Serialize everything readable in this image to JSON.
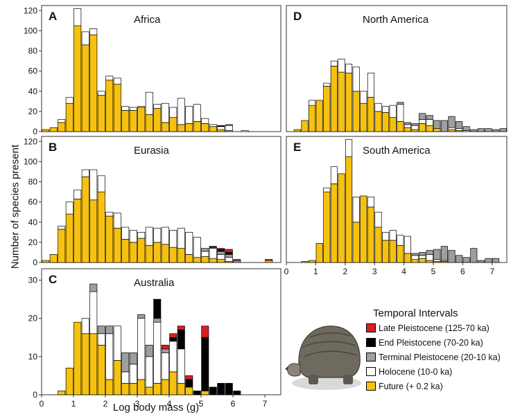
{
  "figure": {
    "y_axis_title": "Number of species present",
    "x_axis_title": "Log body mass (g)"
  },
  "legend": {
    "title": "Temporal Intervals",
    "items": [
      {
        "label": "Late Pleistocene (125-70 ka)",
        "color": "#d71f26"
      },
      {
        "label": "End Pleistocene (70-20 ka)",
        "color": "#000000"
      },
      {
        "label": "Terminal Pleistocene (20-10 ka)",
        "color": "#9e9e9e"
      },
      {
        "label": "Holocene (10-0 ka)",
        "color": "#ffffff"
      },
      {
        "label": "Future (+ 0.2 ka)",
        "color": "#f7c10f"
      }
    ]
  },
  "illustration": {
    "icon": "glyptodont-illustration"
  },
  "chart_data": [
    {
      "type": "bar",
      "stacked": true,
      "letter": "A",
      "title": "Africa",
      "xlim": [
        0,
        7.5
      ],
      "ylim": [
        0,
        125
      ],
      "yticks": [
        0,
        20,
        40,
        60,
        80,
        100,
        120
      ],
      "bin_width": 0.25,
      "x": [
        0.125,
        0.375,
        0.625,
        0.875,
        1.125,
        1.375,
        1.625,
        1.875,
        2.125,
        2.375,
        2.625,
        2.875,
        3.125,
        3.375,
        3.625,
        3.875,
        4.125,
        4.375,
        4.625,
        4.875,
        5.125,
        5.375,
        5.625,
        5.875,
        6.125,
        6.375,
        6.625,
        6.875
      ],
      "series": [
        {
          "name": "Future (+ 0.2 ka)",
          "values": [
            2,
            4,
            9,
            28,
            105,
            86,
            96,
            36,
            51,
            47,
            21,
            21,
            24,
            17,
            23,
            9,
            14,
            7,
            8,
            10,
            8,
            5,
            2,
            1,
            0,
            0,
            0,
            0
          ]
        },
        {
          "name": "Holocene (10-0 ka)",
          "values": [
            0,
            0,
            3,
            6,
            17,
            13,
            6,
            4,
            4,
            6,
            4,
            3,
            1,
            22,
            4,
            19,
            10,
            26,
            17,
            17,
            5,
            2,
            3,
            5,
            0,
            1,
            0,
            0
          ]
        },
        {
          "name": "Terminal Pleistocene (20-10 ka)",
          "values": [
            0,
            0,
            0,
            0,
            0,
            0,
            0,
            0,
            0,
            0,
            0,
            0,
            0,
            0,
            0,
            0,
            0,
            0,
            0,
            0,
            0,
            0,
            0,
            1,
            0,
            0,
            0,
            0
          ]
        },
        {
          "name": "End Pleistocene (70-20 ka)",
          "values": [
            0,
            0,
            0,
            0,
            0,
            0,
            0,
            0,
            0,
            0,
            0,
            0,
            0,
            0,
            0,
            0,
            0,
            0,
            0,
            0,
            0,
            0,
            1,
            0,
            0,
            0,
            0,
            0
          ]
        },
        {
          "name": "Late Pleistocene (125-70 ka)",
          "values": [
            0,
            0,
            0,
            0,
            0,
            0,
            0,
            0,
            0,
            0,
            0,
            0,
            0,
            0,
            0,
            0,
            0,
            0,
            0,
            0,
            0,
            0,
            0,
            0,
            0,
            0,
            0,
            0
          ]
        }
      ]
    },
    {
      "type": "bar",
      "stacked": true,
      "letter": "B",
      "title": "Eurasia",
      "xlim": [
        0,
        7.5
      ],
      "ylim": [
        0,
        125
      ],
      "yticks": [
        0,
        20,
        40,
        60,
        80,
        100,
        120
      ],
      "bin_width": 0.25,
      "x": [
        0.125,
        0.375,
        0.625,
        0.875,
        1.125,
        1.375,
        1.625,
        1.875,
        2.125,
        2.375,
        2.625,
        2.875,
        3.125,
        3.375,
        3.625,
        3.875,
        4.125,
        4.375,
        4.625,
        4.875,
        5.125,
        5.375,
        5.625,
        5.875,
        6.125,
        6.375,
        6.625,
        6.875,
        7.125
      ],
      "series": [
        {
          "name": "Future (+ 0.2 ka)",
          "values": [
            2,
            8,
            33,
            48,
            63,
            85,
            62,
            70,
            46,
            34,
            23,
            20,
            24,
            17,
            20,
            18,
            15,
            14,
            8,
            5,
            6,
            4,
            3,
            1,
            0,
            0,
            0,
            0,
            2
          ]
        },
        {
          "name": "Holocene (10-0 ka)",
          "values": [
            0,
            0,
            3,
            12,
            9,
            7,
            30,
            16,
            4,
            15,
            12,
            12,
            6,
            18,
            14,
            17,
            17,
            20,
            22,
            20,
            5,
            10,
            5,
            4,
            0,
            0,
            0,
            0,
            0
          ]
        },
        {
          "name": "Terminal Pleistocene (20-10 ka)",
          "values": [
            0,
            0,
            0,
            0,
            0,
            0,
            0,
            0,
            0,
            0,
            0,
            0,
            0,
            0,
            0,
            0,
            0,
            0,
            0,
            0,
            3,
            1,
            3,
            3,
            2,
            0,
            0,
            0,
            0
          ]
        },
        {
          "name": "End Pleistocene (70-20 ka)",
          "values": [
            0,
            0,
            0,
            0,
            0,
            0,
            0,
            0,
            0,
            0,
            0,
            0,
            0,
            0,
            0,
            0,
            0,
            0,
            0,
            0,
            0,
            1,
            2,
            2,
            0,
            0,
            0,
            0,
            0
          ]
        },
        {
          "name": "Late Pleistocene (125-70 ka)",
          "values": [
            0,
            0,
            0,
            0,
            0,
            0,
            0,
            0,
            0,
            0,
            0,
            0,
            0,
            0,
            0,
            0,
            0,
            0,
            0,
            0,
            0,
            0,
            1,
            3,
            1,
            0,
            0,
            0,
            1
          ]
        }
      ]
    },
    {
      "type": "bar",
      "stacked": true,
      "letter": "C",
      "title": "Australia",
      "xlim": [
        0,
        7.5
      ],
      "ylim": [
        0,
        33
      ],
      "yticks": [
        0,
        10,
        20,
        30
      ],
      "bin_width": 0.25,
      "xticks": [
        0,
        1,
        2,
        3,
        4,
        5,
        6,
        7
      ],
      "x": [
        0.625,
        0.875,
        1.125,
        1.375,
        1.625,
        1.875,
        2.125,
        2.375,
        2.625,
        2.875,
        3.125,
        3.375,
        3.625,
        3.875,
        4.125,
        4.375,
        4.625,
        4.875,
        5.125,
        5.375,
        5.625,
        5.875,
        6.125
      ],
      "series": [
        {
          "name": "Future (+ 0.2 ka)",
          "values": [
            1,
            7,
            19,
            16,
            16,
            13,
            4,
            9,
            3,
            3,
            4,
            2,
            3,
            4,
            6,
            3,
            2,
            0,
            1,
            0,
            0,
            0,
            0
          ]
        },
        {
          "name": "Holocene (10-0 ka)",
          "values": [
            0,
            0,
            0,
            4,
            11,
            3,
            12,
            9,
            3,
            5,
            16,
            8,
            16,
            7,
            8,
            9,
            0,
            0,
            0,
            0,
            0,
            0,
            0
          ]
        },
        {
          "name": "Terminal Pleistocene (20-10 ka)",
          "values": [
            0,
            0,
            0,
            0,
            2,
            2,
            2,
            0,
            5,
            3,
            1,
            3,
            1,
            1,
            0,
            0,
            0,
            0,
            0,
            0,
            0,
            0,
            0
          ]
        },
        {
          "name": "End Pleistocene (70-20 ka)",
          "values": [
            0,
            0,
            0,
            0,
            0,
            0,
            0,
            0,
            0,
            0,
            0,
            0,
            5,
            0,
            1,
            5,
            2,
            1,
            14,
            2,
            3,
            3,
            1
          ]
        },
        {
          "name": "Late Pleistocene (125-70 ka)",
          "values": [
            0,
            0,
            0,
            0,
            0,
            0,
            0,
            0,
            0,
            0,
            0,
            0,
            0,
            1,
            1,
            1,
            1,
            0,
            3,
            0,
            0,
            0,
            0
          ]
        }
      ]
    },
    {
      "type": "bar",
      "stacked": true,
      "letter": "D",
      "title": "North America",
      "xlim": [
        0,
        7.5
      ],
      "ylim": [
        0,
        125
      ],
      "bin_width": 0.25,
      "x": [
        0.375,
        0.625,
        0.875,
        1.125,
        1.375,
        1.625,
        1.875,
        2.125,
        2.375,
        2.625,
        2.875,
        3.125,
        3.375,
        3.625,
        3.875,
        4.125,
        4.375,
        4.625,
        4.875,
        5.125,
        5.375,
        5.625,
        5.875,
        6.125,
        6.375,
        6.625,
        6.875,
        7.125,
        7.375
      ],
      "series": [
        {
          "name": "Future (+ 0.2 ka)",
          "values": [
            2,
            11,
            26,
            31,
            45,
            65,
            59,
            58,
            40,
            28,
            34,
            20,
            19,
            14,
            10,
            4,
            2,
            8,
            6,
            3,
            0,
            2,
            1,
            0,
            0,
            0,
            0,
            0,
            0
          ]
        },
        {
          "name": "Holocene (10-0 ka)",
          "values": [
            0,
            0,
            5,
            0,
            3,
            5,
            13,
            9,
            24,
            12,
            24,
            8,
            6,
            12,
            17,
            3,
            4,
            4,
            6,
            0,
            0,
            2,
            2,
            1,
            0,
            0,
            0,
            0,
            0
          ]
        },
        {
          "name": "Terminal Pleistocene (20-10 ka)",
          "values": [
            0,
            0,
            0,
            0,
            0,
            0,
            0,
            0,
            0,
            0,
            0,
            0,
            0,
            0,
            2,
            2,
            2,
            6,
            4,
            8,
            11,
            11,
            7,
            4,
            2,
            3,
            3,
            2,
            3
          ]
        },
        {
          "name": "End Pleistocene (70-20 ka)",
          "values": [
            0,
            0,
            0,
            0,
            0,
            0,
            0,
            0,
            0,
            0,
            0,
            0,
            0,
            0,
            0,
            0,
            0,
            0,
            0,
            0,
            0,
            0,
            0,
            0,
            0,
            0,
            0,
            0,
            0
          ]
        },
        {
          "name": "Late Pleistocene (125-70 ka)",
          "values": [
            0,
            0,
            0,
            0,
            0,
            0,
            0,
            0,
            0,
            0,
            0,
            0,
            0,
            0,
            0,
            0,
            0,
            0,
            0,
            0,
            0,
            0,
            0,
            0,
            0,
            0,
            0,
            0,
            0
          ]
        }
      ]
    },
    {
      "type": "bar",
      "stacked": true,
      "letter": "E",
      "title": "South America",
      "xlim": [
        0,
        7.5
      ],
      "ylim": [
        0,
        125
      ],
      "bin_width": 0.25,
      "xticks": [
        0,
        1,
        2,
        3,
        4,
        5,
        6,
        7
      ],
      "x": [
        0.625,
        0.875,
        1.125,
        1.375,
        1.625,
        1.875,
        2.125,
        2.375,
        2.625,
        2.875,
        3.125,
        3.375,
        3.625,
        3.875,
        4.125,
        4.375,
        4.625,
        4.875,
        5.125,
        5.375,
        5.625,
        5.875,
        6.125,
        6.375,
        6.625,
        6.875,
        7.125
      ],
      "series": [
        {
          "name": "Future (+ 0.2 ka)",
          "values": [
            1,
            2,
            19,
            70,
            78,
            88,
            105,
            40,
            66,
            55,
            35,
            22,
            22,
            17,
            9,
            3,
            4,
            2,
            1,
            1,
            0,
            0,
            0,
            0,
            0,
            0,
            0
          ]
        },
        {
          "name": "Holocene (10-0 ka)",
          "values": [
            0,
            0,
            0,
            4,
            17,
            0,
            17,
            25,
            0,
            10,
            15,
            8,
            10,
            10,
            17,
            4,
            3,
            6,
            2,
            1,
            0,
            0,
            0,
            0,
            0,
            0,
            0
          ]
        },
        {
          "name": "Terminal Pleistocene (20-10 ka)",
          "values": [
            0,
            0,
            0,
            0,
            0,
            0,
            0,
            0,
            0,
            0,
            0,
            0,
            0,
            0,
            0,
            2,
            3,
            4,
            10,
            14,
            12,
            7,
            5,
            14,
            2,
            4,
            4
          ]
        },
        {
          "name": "End Pleistocene (70-20 ka)",
          "values": [
            0,
            0,
            0,
            0,
            0,
            0,
            0,
            0,
            0,
            0,
            0,
            0,
            0,
            0,
            0,
            0,
            0,
            0,
            0,
            0,
            0,
            0,
            0,
            0,
            0,
            0,
            0
          ]
        },
        {
          "name": "Late Pleistocene (125-70 ka)",
          "values": [
            0,
            0,
            0,
            0,
            0,
            0,
            0,
            0,
            0,
            0,
            0,
            0,
            0,
            0,
            0,
            0,
            0,
            0,
            0,
            0,
            0,
            0,
            0,
            0,
            0,
            0,
            0
          ]
        }
      ]
    }
  ]
}
